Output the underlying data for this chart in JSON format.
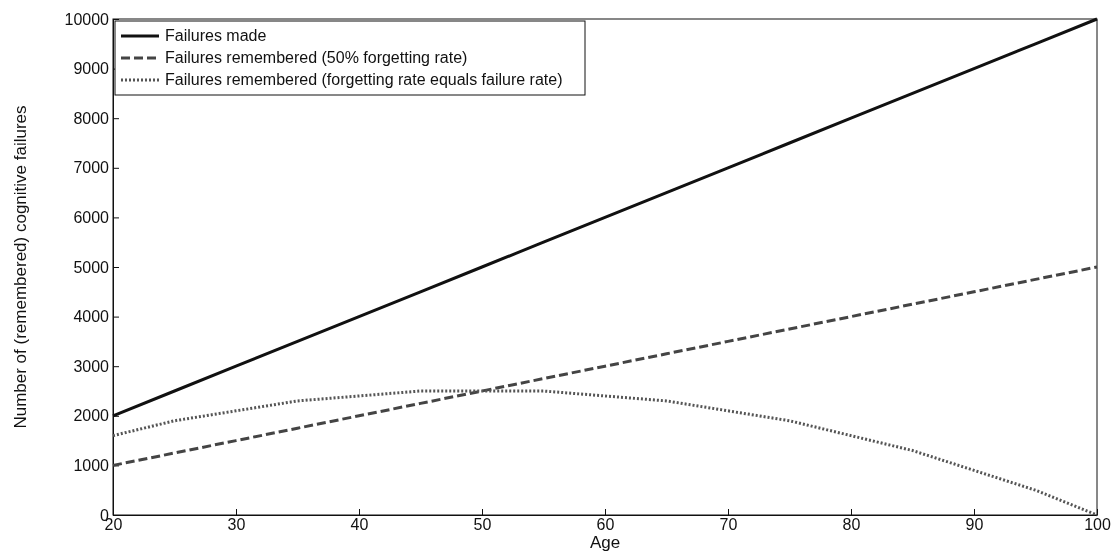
{
  "chart_data": {
    "type": "line",
    "xlabel": "Age",
    "ylabel": "Number of (remembered) cognitive failures",
    "x": [
      20,
      25,
      30,
      35,
      40,
      45,
      50,
      55,
      60,
      65,
      70,
      75,
      80,
      85,
      90,
      95,
      100
    ],
    "series": [
      {
        "name": "Failures made",
        "color": "#111111",
        "line_style": "solid",
        "values": [
          2000,
          2500,
          3000,
          3500,
          4000,
          4500,
          5000,
          5500,
          6000,
          6500,
          7000,
          7500,
          8000,
          8500,
          9000,
          9500,
          10000
        ]
      },
      {
        "name": "Failures remembered (50% forgetting rate)",
        "color": "#444444",
        "line_style": "dashed",
        "values": [
          1000,
          1250,
          1500,
          1750,
          2000,
          2250,
          2500,
          2750,
          3000,
          3250,
          3500,
          3750,
          4000,
          4250,
          4500,
          4750,
          5000
        ]
      },
      {
        "name": "Failures remembered (forgetting rate equals failure rate)",
        "color": "#555555",
        "line_style": "dotted",
        "values": [
          1600,
          1900,
          2100,
          2300,
          2400,
          2500,
          2500,
          2500,
          2400,
          2300,
          2100,
          1900,
          1600,
          1300,
          900,
          500,
          0
        ]
      }
    ],
    "xlim": [
      20,
      100
    ],
    "xticks": [
      20,
      30,
      40,
      50,
      60,
      70,
      80,
      90,
      100
    ],
    "ylim": [
      0,
      10000
    ],
    "yticks": [
      0,
      1000,
      2000,
      3000,
      4000,
      5000,
      6000,
      7000,
      8000,
      9000,
      10000
    ],
    "grid": false,
    "legend": "top left",
    "marker": "none"
  }
}
